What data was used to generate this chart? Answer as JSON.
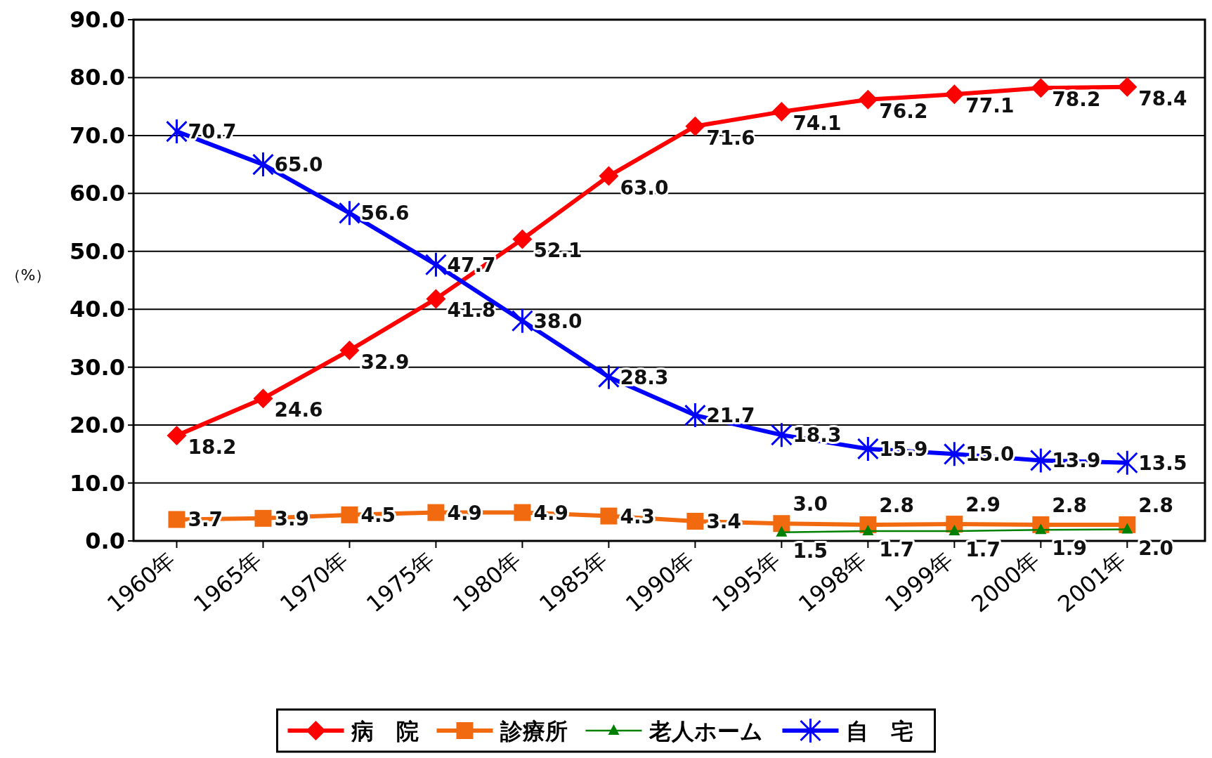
{
  "chart_data": {
    "type": "line",
    "ylabel": "（%）",
    "categories": [
      "1960年",
      "1965年",
      "1970年",
      "1975年",
      "1980年",
      "1985年",
      "1990年",
      "1995年",
      "1998年",
      "1999年",
      "2000年",
      "2001年"
    ],
    "series": [
      {
        "name": "病　院",
        "color": "#ff0000",
        "marker": "diamond",
        "values": [
          18.2,
          24.6,
          32.9,
          41.8,
          52.1,
          63.0,
          71.6,
          74.1,
          76.2,
          77.1,
          78.2,
          78.4
        ],
        "value_labels": [
          "18.2",
          "24.6",
          "32.9",
          "41.8",
          "52.1",
          "63.0",
          "71.6",
          "74.1",
          "76.2",
          "77.1",
          "78.2",
          "78.4"
        ]
      },
      {
        "name": "診療所",
        "color": "#f26a10",
        "marker": "square",
        "values": [
          3.7,
          3.9,
          4.5,
          4.9,
          4.9,
          4.3,
          3.4,
          3.0,
          2.8,
          2.9,
          2.8,
          2.8
        ],
        "value_labels": [
          "3.7",
          "3.9",
          "4.5",
          "4.9",
          "4.9",
          "4.3",
          "3.4",
          "3.0",
          "2.8",
          "2.9",
          "2.8",
          "2.8"
        ]
      },
      {
        "name": "老人ホーム",
        "color": "#008000",
        "marker": "triangle",
        "values": [
          null,
          null,
          null,
          null,
          null,
          null,
          null,
          1.5,
          1.7,
          1.7,
          1.9,
          2.0
        ],
        "value_labels": [
          null,
          null,
          null,
          null,
          null,
          null,
          null,
          "1.5",
          "1.7",
          "1.7",
          "1.9",
          "2.0"
        ]
      },
      {
        "name": "自　宅",
        "color": "#0000ff",
        "marker": "cross",
        "values": [
          70.7,
          65.0,
          56.6,
          47.7,
          38.0,
          28.3,
          21.7,
          18.3,
          15.9,
          15.0,
          13.9,
          13.5
        ],
        "value_labels": [
          "70.7",
          "65.0",
          "56.6",
          "47.7",
          "38.0",
          "28.3",
          "21.7",
          "18.3",
          "15.9",
          "15.0",
          "13.9",
          "13.5"
        ]
      }
    ],
    "ylim": [
      0,
      90
    ],
    "yticks": [
      {
        "value": 0,
        "label": "0.0"
      },
      {
        "value": 10,
        "label": "10.0"
      },
      {
        "value": 20,
        "label": "20.0"
      },
      {
        "value": 30,
        "label": "30.0"
      },
      {
        "value": 40,
        "label": "40.0"
      },
      {
        "value": 50,
        "label": "50.0"
      },
      {
        "value": 60,
        "label": "60.0"
      },
      {
        "value": 70,
        "label": "70.0"
      },
      {
        "value": 80,
        "label": "80.0"
      },
      {
        "value": 90,
        "label": "90.0"
      }
    ],
    "grid": "y",
    "legend": "bottom"
  }
}
